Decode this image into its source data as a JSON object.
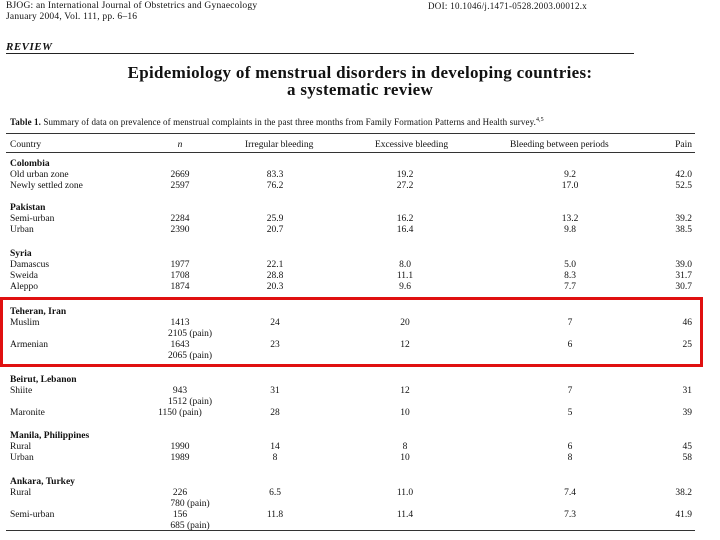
{
  "header": {
    "journal_line1": "BJOG: an International Journal of Obstetrics and Gynaecology",
    "journal_line2": "January 2004, Vol. 111, pp. 6–16",
    "doi": "DOI: 10.1046/j.1471-0528.2003.00012.x"
  },
  "section_label": "REVIEW",
  "title_line1": "Epidemiology of menstrual disorders in developing countries:",
  "title_line2": "a systematic review",
  "table": {
    "caption_bold": "Table 1.",
    "caption_text": "Summary of data on prevalence of menstrual complaints in the past three months from Family Formation Patterns and Health survey.",
    "caption_ref": "4,5",
    "headers": {
      "country": "Country",
      "n": "n",
      "irregular": "Irregular bleeding",
      "excessive": "Excessive bleeding",
      "between": "Bleeding between periods",
      "pain": "Pain"
    },
    "groups": [
      {
        "name": "Colombia",
        "rows": [
          {
            "label": "Old urban zone",
            "n": "2669",
            "irregular": "83.3",
            "excessive": "19.2",
            "between": "9.2",
            "pain": "42.0"
          },
          {
            "label": "Newly settled zone",
            "n": "2597",
            "irregular": "76.2",
            "excessive": "27.2",
            "between": "17.0",
            "pain": "52.5"
          }
        ]
      },
      {
        "name": "Pakistan",
        "rows": [
          {
            "label": "Semi-urban",
            "n": "2284",
            "irregular": "25.9",
            "excessive": "16.2",
            "between": "13.2",
            "pain": "39.2"
          },
          {
            "label": "Urban",
            "n": "2390",
            "irregular": "20.7",
            "excessive": "16.4",
            "between": "9.8",
            "pain": "38.5"
          }
        ]
      },
      {
        "name": "Syria",
        "rows": [
          {
            "label": "Damascus",
            "n": "1977",
            "irregular": "22.1",
            "excessive": "8.0",
            "between": "5.0",
            "pain": "39.0"
          },
          {
            "label": "Sweida",
            "n": "1708",
            "irregular": "28.8",
            "excessive": "11.1",
            "between": "8.3",
            "pain": "31.7"
          },
          {
            "label": "Aleppo",
            "n": "1874",
            "irregular": "20.3",
            "excessive": "9.6",
            "between": "7.7",
            "pain": "30.7"
          }
        ]
      },
      {
        "name": "Teheran, Iran",
        "rows": [
          {
            "label": "Muslim",
            "n": "1413",
            "n2": "2105 (pain)",
            "irregular": "24",
            "excessive": "20",
            "between": "7",
            "pain": "46"
          },
          {
            "label": "Armenian",
            "n": "1643",
            "n2": "2065 (pain)",
            "irregular": "23",
            "excessive": "12",
            "between": "6",
            "pain": "25"
          }
        ]
      },
      {
        "name": "Beirut, Lebanon",
        "rows": [
          {
            "label": "Shiite",
            "n": "943",
            "n2": "1512 (pain)",
            "irregular": "31",
            "excessive": "12",
            "between": "7",
            "pain": "31"
          },
          {
            "label": "Maronite",
            "n": "1150 (pain)",
            "irregular": "28",
            "excessive": "10",
            "between": "5",
            "pain": "39"
          }
        ]
      },
      {
        "name": "Manila, Philippines",
        "rows": [
          {
            "label": "Rural",
            "n": "1990",
            "irregular": "14",
            "excessive": "8",
            "between": "6",
            "pain": "45"
          },
          {
            "label": "Urban",
            "n": "1989",
            "irregular": "8",
            "excessive": "10",
            "between": "8",
            "pain": "58"
          }
        ]
      },
      {
        "name": "Ankara, Turkey",
        "rows": [
          {
            "label": "Rural",
            "n": "226",
            "n2": "780 (pain)",
            "irregular": "6.5",
            "excessive": "11.0",
            "between": "7.4",
            "pain": "38.2"
          },
          {
            "label": "Semi-urban",
            "n": "156",
            "n2": "685 (pain)",
            "irregular": "11.8",
            "excessive": "11.4",
            "between": "7.3",
            "pain": "41.9"
          }
        ]
      }
    ]
  }
}
